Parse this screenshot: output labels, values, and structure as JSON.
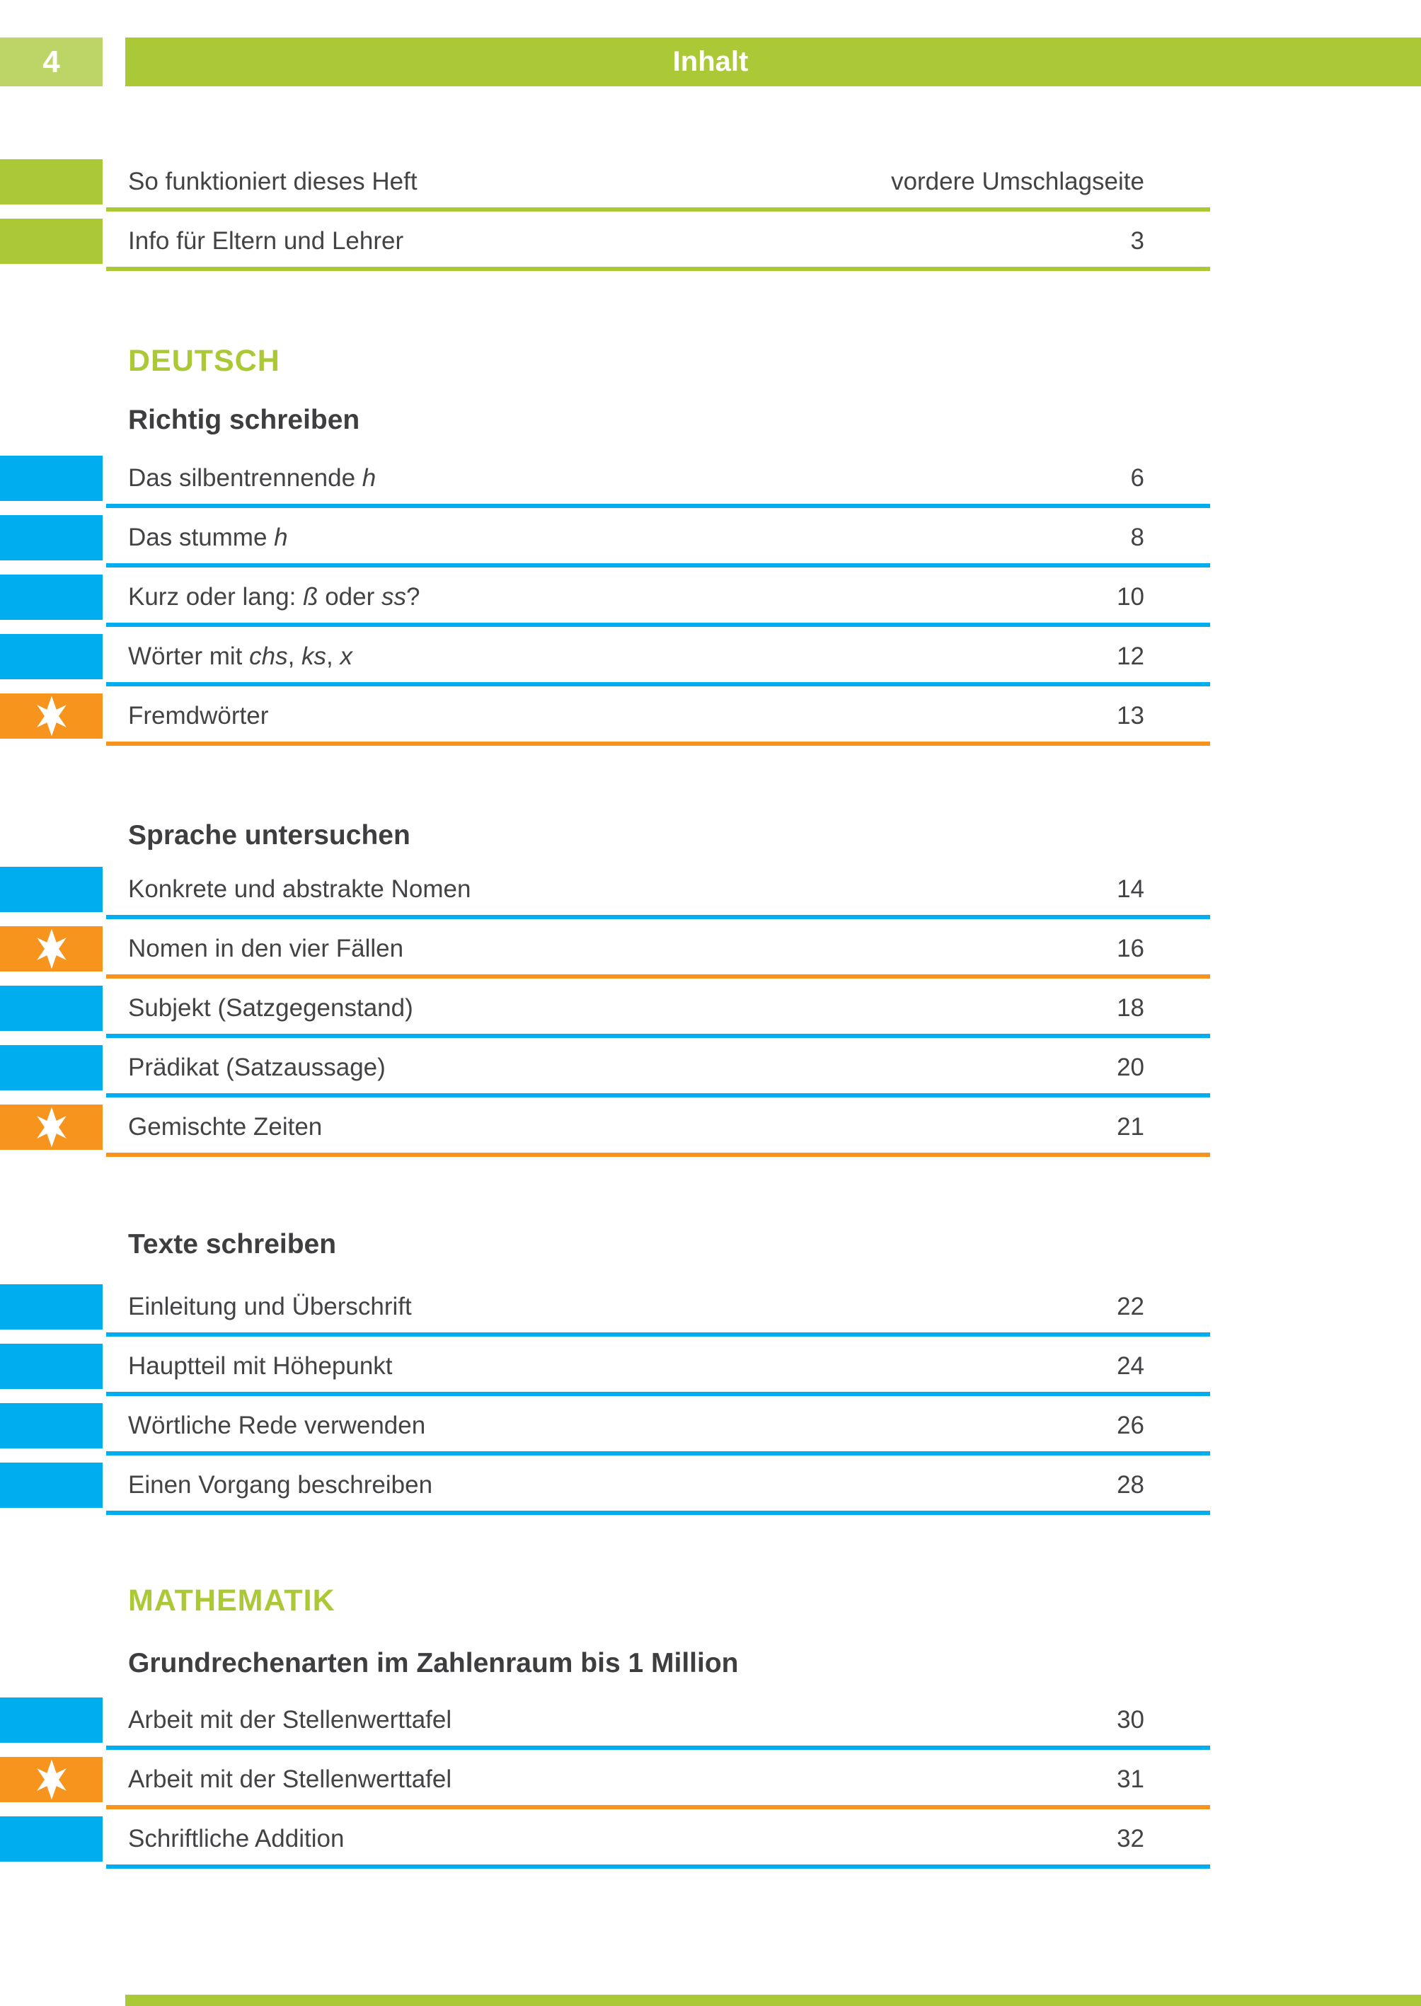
{
  "header": {
    "page_number": "4",
    "title": "Inhalt"
  },
  "colors": {
    "green": "#abc837",
    "green_light": "#bdd567",
    "blue": "#00aeef",
    "orange": "#f7941e",
    "text": "#434345"
  },
  "intro_rows": [
    {
      "marker": "green",
      "segments": [
        {
          "t": "So funktioniert dieses Heft",
          "i": false
        }
      ],
      "page": "vordere Umschlagseite"
    },
    {
      "marker": "green",
      "segments": [
        {
          "t": "Info für Eltern und Lehrer",
          "i": false
        }
      ],
      "page": "3"
    }
  ],
  "sections": [
    {
      "title": "DEUTSCH",
      "groups": [
        {
          "title": "Richtig schreiben",
          "rows": [
            {
              "marker": "blue",
              "segments": [
                {
                  "t": "Das silbentrennende ",
                  "i": false
                },
                {
                  "t": "h",
                  "i": true
                }
              ],
              "page": "6"
            },
            {
              "marker": "blue",
              "segments": [
                {
                  "t": "Das stumme ",
                  "i": false
                },
                {
                  "t": "h",
                  "i": true
                }
              ],
              "page": "8"
            },
            {
              "marker": "blue",
              "segments": [
                {
                  "t": "Kurz oder lang: ",
                  "i": false
                },
                {
                  "t": "ß",
                  "i": true
                },
                {
                  "t": " oder ",
                  "i": false
                },
                {
                  "t": "ss",
                  "i": true
                },
                {
                  "t": "?",
                  "i": false
                }
              ],
              "page": "10"
            },
            {
              "marker": "blue",
              "segments": [
                {
                  "t": "Wörter mit ",
                  "i": false
                },
                {
                  "t": "chs",
                  "i": true
                },
                {
                  "t": ", ",
                  "i": false
                },
                {
                  "t": "ks",
                  "i": true
                },
                {
                  "t": ", ",
                  "i": false
                },
                {
                  "t": "x",
                  "i": true
                }
              ],
              "page": "12"
            },
            {
              "marker": "star",
              "segments": [
                {
                  "t": "Fremdwörter",
                  "i": false
                }
              ],
              "page": "13"
            }
          ]
        },
        {
          "title": "Sprache untersuchen",
          "rows": [
            {
              "marker": "blue",
              "segments": [
                {
                  "t": "Konkrete und abstrakte Nomen",
                  "i": false
                }
              ],
              "page": "14"
            },
            {
              "marker": "star",
              "segments": [
                {
                  "t": "Nomen in den vier Fällen",
                  "i": false
                }
              ],
              "page": "16"
            },
            {
              "marker": "blue",
              "segments": [
                {
                  "t": "Subjekt (Satzgegenstand)",
                  "i": false
                }
              ],
              "page": "18"
            },
            {
              "marker": "blue",
              "segments": [
                {
                  "t": "Prädikat (Satzaussage)",
                  "i": false
                }
              ],
              "page": "20"
            },
            {
              "marker": "star",
              "segments": [
                {
                  "t": "Gemischte Zeiten",
                  "i": false
                }
              ],
              "page": "21"
            }
          ]
        },
        {
          "title": "Texte schreiben",
          "rows": [
            {
              "marker": "blue",
              "segments": [
                {
                  "t": "Einleitung und Überschrift",
                  "i": false
                }
              ],
              "page": "22"
            },
            {
              "marker": "blue",
              "segments": [
                {
                  "t": "Hauptteil mit Höhepunkt",
                  "i": false
                }
              ],
              "page": "24"
            },
            {
              "marker": "blue",
              "segments": [
                {
                  "t": "Wörtliche Rede verwenden",
                  "i": false
                }
              ],
              "page": "26"
            },
            {
              "marker": "blue",
              "segments": [
                {
                  "t": "Einen Vorgang beschreiben",
                  "i": false
                }
              ],
              "page": "28"
            }
          ]
        }
      ]
    },
    {
      "title": "MATHEMATIK",
      "groups": [
        {
          "title": "Grundrechenarten im Zahlenraum bis 1 Million",
          "rows": [
            {
              "marker": "blue",
              "segments": [
                {
                  "t": "Arbeit mit der Stellenwerttafel",
                  "i": false
                }
              ],
              "page": "30"
            },
            {
              "marker": "star",
              "segments": [
                {
                  "t": "Arbeit mit der Stellenwerttafel",
                  "i": false
                }
              ],
              "page": "31"
            },
            {
              "marker": "blue",
              "segments": [
                {
                  "t": "Schriftliche Addition",
                  "i": false
                }
              ],
              "page": "32"
            }
          ]
        }
      ]
    }
  ]
}
